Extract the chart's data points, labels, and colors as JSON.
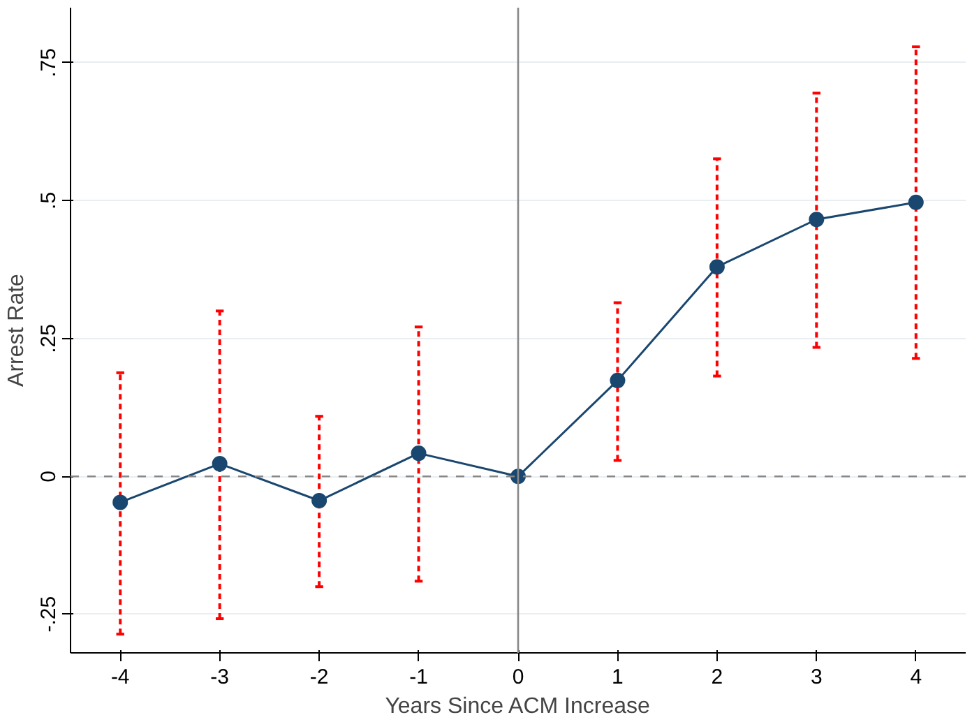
{
  "chart_data": {
    "type": "line",
    "xlabel": "Years Since ACM Increase",
    "ylabel": "Arrest Rate",
    "x": [
      -4,
      -3,
      -2,
      -1,
      0,
      1,
      2,
      3,
      4
    ],
    "series": [
      {
        "color": "#1a476f",
        "values": [
          -0.047,
          0.023,
          -0.044,
          0.042,
          0,
          0.174,
          0.38,
          0.466,
          0.497
        ],
        "errors": [
          [
            -0.286,
            0.188
          ],
          [
            -0.258,
            0.3
          ],
          [
            -0.2,
            0.109
          ],
          [
            -0.19,
            0.271
          ],
          null,
          [
            0.029,
            0.315
          ],
          [
            0.182,
            0.576
          ],
          [
            0.234,
            0.695
          ],
          [
            0.214,
            0.779
          ]
        ]
      }
    ],
    "xlim": [
      -4.5,
      4.5
    ],
    "ylim": [
      -0.32,
      0.85
    ],
    "xticks": [
      -4,
      -3,
      -2,
      -1,
      0,
      1,
      2,
      3,
      4
    ],
    "yticks": [
      {
        "value": -0.25,
        "label": "-.25"
      },
      0,
      {
        "value": 0.25,
        "label": ".25"
      },
      {
        "value": 0.5,
        "label": ".5"
      },
      {
        "value": 0.75,
        "label": ".75"
      }
    ],
    "ref_lines": [
      {
        "axis": "y",
        "value": 0,
        "color": "#888888",
        "line_style": "dashed"
      },
      {
        "axis": "x",
        "value": 0,
        "color": "#888888",
        "line_style": "solid"
      }
    ],
    "grid": "y",
    "marker": "circle",
    "line_style": "solid"
  }
}
